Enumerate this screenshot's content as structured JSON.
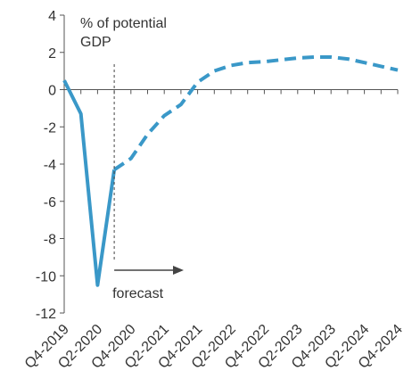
{
  "chart_data": {
    "type": "line",
    "ylabel": "% of potential GDP",
    "ylabel_lines": [
      "% of potential",
      "GDP"
    ],
    "ylim": [
      -12,
      4
    ],
    "yticks": [
      4,
      2,
      0,
      -2,
      -4,
      -6,
      -8,
      -10,
      -12
    ],
    "ytick_labels": [
      "4",
      "2",
      "0",
      "-2",
      "-4",
      "-6",
      "-8",
      "-10",
      "-12"
    ],
    "x_categories": [
      "Q4-2019",
      "Q1-2020",
      "Q2-2020",
      "Q3-2020",
      "Q4-2020",
      "Q1-2021",
      "Q2-2021",
      "Q3-2021",
      "Q4-2021",
      "Q1-2022",
      "Q2-2022",
      "Q3-2022",
      "Q4-2022",
      "Q1-2023",
      "Q2-2023",
      "Q3-2023",
      "Q4-2023",
      "Q1-2024",
      "Q2-2024",
      "Q3-2024",
      "Q4-2024"
    ],
    "xtick_labels": [
      "Q4-2019",
      "Q2-2020",
      "Q4-2020",
      "Q2-2021",
      "Q4-2021",
      "Q2-2022",
      "Q4-2022",
      "Q2-2023",
      "Q4-2023",
      "Q2-2024",
      "Q4-2024"
    ],
    "grid": false,
    "line_color": "#3a98c8",
    "series": [
      {
        "style": "solid",
        "x": [
          "Q4-2019",
          "Q1-2020",
          "Q2-2020",
          "Q3-2020"
        ],
        "values": [
          0.5,
          -1.3,
          -10.5,
          -4.3
        ]
      },
      {
        "style": "dashed",
        "x": [
          "Q3-2020",
          "Q4-2020",
          "Q1-2021",
          "Q2-2021",
          "Q3-2021",
          "Q4-2021",
          "Q1-2022",
          "Q2-2022",
          "Q3-2022",
          "Q4-2022",
          "Q1-2023",
          "Q2-2023",
          "Q3-2023",
          "Q4-2023",
          "Q1-2024",
          "Q2-2024",
          "Q3-2024",
          "Q4-2024"
        ],
        "values": [
          -4.3,
          -3.7,
          -2.4,
          -1.4,
          -0.8,
          0.4,
          1.0,
          1.3,
          1.45,
          1.5,
          1.6,
          1.7,
          1.75,
          1.75,
          1.65,
          1.45,
          1.25,
          1.05
        ]
      }
    ],
    "annotation": {
      "text": "forecast",
      "at": "Q3-2020"
    }
  }
}
